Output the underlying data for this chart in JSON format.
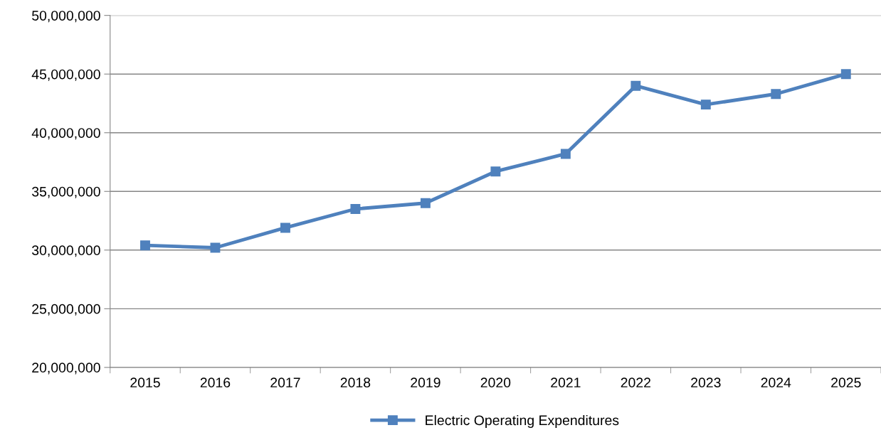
{
  "chart_data": {
    "type": "line",
    "categories": [
      "2015",
      "2016",
      "2017",
      "2018",
      "2019",
      "2020",
      "2021",
      "2022",
      "2023",
      "2024",
      "2025"
    ],
    "series": [
      {
        "name": "Electric Operating Expenditures",
        "color": "#4f81bd",
        "values": [
          30400000,
          30200000,
          31900000,
          33500000,
          34000000,
          36700000,
          38200000,
          44000000,
          42400000,
          43300000,
          45000000
        ]
      }
    ],
    "ylim": [
      20000000,
      50000000
    ],
    "yticks": [
      {
        "value": 20000000,
        "label": "20,000,000"
      },
      {
        "value": 25000000,
        "label": "25,000,000"
      },
      {
        "value": 30000000,
        "label": "30,000,000"
      },
      {
        "value": 35000000,
        "label": "35,000,000"
      },
      {
        "value": 40000000,
        "label": "40,000,000"
      },
      {
        "value": 45000000,
        "label": "45,000,000"
      },
      {
        "value": 50000000,
        "label": "50,000,000"
      }
    ],
    "grid": "y",
    "legend": "bottom",
    "marker": "square",
    "line_style": "solid"
  }
}
